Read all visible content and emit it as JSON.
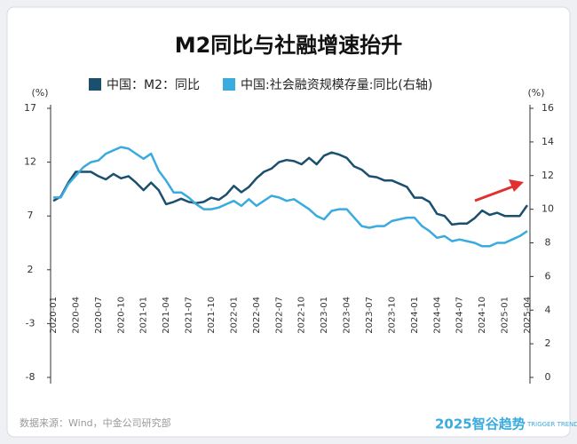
{
  "chart_data": {
    "type": "line",
    "title": "M2同比与社融增速抬升",
    "y_unit": "(%)",
    "y2_unit": "(%)",
    "source": "数据来源：Wind，中金公司研究部",
    "watermark": "2025智谷趋势",
    "watermark_sub": "TRIGGER TREND",
    "categories": [
      "2020-01",
      null,
      null,
      "2020-04",
      null,
      null,
      "2020-07",
      null,
      null,
      "2020-10",
      null,
      null,
      "2021-01",
      null,
      null,
      "2021-04",
      null,
      null,
      "2021-07",
      null,
      null,
      "2021-10",
      null,
      null,
      "2022-01",
      null,
      null,
      "2022-04",
      null,
      null,
      "2022-07",
      null,
      null,
      "2022-10",
      null,
      null,
      "2023-01",
      null,
      null,
      "2023-04",
      null,
      null,
      "2023-07",
      null,
      null,
      "2023-10",
      null,
      null,
      "2024-01",
      null,
      null,
      "2024-04",
      null,
      null,
      "2024-07",
      null,
      null,
      "2024-10",
      null,
      null,
      "2025-01",
      null,
      null,
      "2025-04"
    ],
    "series": [
      {
        "name": "中国：M2：同比",
        "color": "#1b4f6e",
        "axis": "y",
        "values": [
          8.4,
          8.8,
          10.1,
          11.1,
          11.1,
          11.1,
          10.7,
          10.4,
          10.9,
          10.5,
          10.7,
          10.1,
          9.4,
          10.1,
          9.4,
          8.1,
          8.3,
          8.6,
          8.3,
          8.2,
          8.3,
          8.7,
          8.5,
          9.0,
          9.8,
          9.2,
          9.7,
          10.5,
          11.1,
          11.4,
          12.0,
          12.2,
          12.1,
          11.8,
          12.4,
          11.8,
          12.6,
          12.9,
          12.7,
          12.4,
          11.6,
          11.3,
          10.7,
          10.6,
          10.3,
          10.3,
          10.0,
          9.7,
          8.7,
          8.7,
          8.3,
          7.2,
          7.0,
          6.2,
          6.3,
          6.3,
          6.8,
          7.5,
          7.1,
          7.3,
          7.0,
          7.0,
          7.0,
          8.0
        ]
      },
      {
        "name": "中国:社会融资规模存量:同比(右轴)",
        "color": "#3aabdf",
        "axis": "y2",
        "values": [
          10.7,
          10.7,
          11.5,
          12.0,
          12.5,
          12.8,
          12.9,
          13.3,
          13.5,
          13.7,
          13.6,
          13.3,
          13.0,
          13.3,
          12.3,
          11.7,
          11.0,
          11.0,
          10.7,
          10.3,
          10.0,
          10.0,
          10.1,
          10.3,
          10.5,
          10.2,
          10.6,
          10.2,
          10.5,
          10.8,
          10.7,
          10.5,
          10.6,
          10.3,
          10.0,
          9.6,
          9.4,
          9.9,
          10.0,
          10.0,
          9.5,
          9.0,
          8.9,
          9.0,
          9.0,
          9.3,
          9.4,
          9.5,
          9.5,
          9.0,
          8.7,
          8.3,
          8.4,
          8.1,
          8.2,
          8.1,
          8.0,
          7.8,
          7.8,
          8.0,
          8.0,
          8.2,
          8.4,
          8.7
        ]
      }
    ],
    "ylim": [
      -8,
      17
    ],
    "yticks": [
      -8,
      -3,
      2,
      7,
      12,
      17
    ],
    "y2lim": [
      0,
      16
    ],
    "y2ticks": [
      0,
      2,
      4,
      6,
      8,
      10,
      12,
      14,
      16
    ]
  }
}
